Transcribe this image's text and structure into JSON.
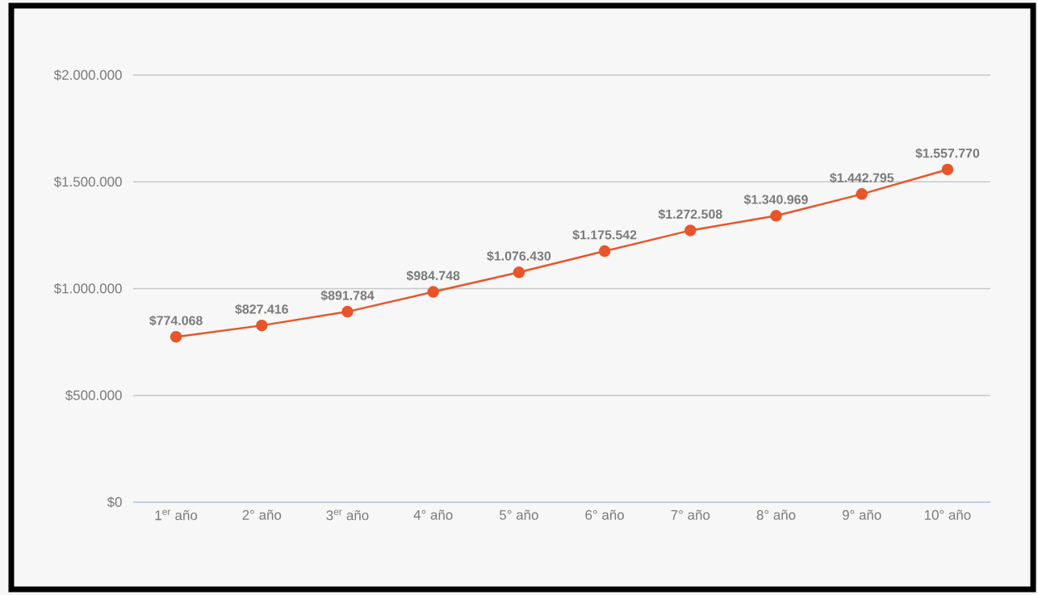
{
  "chart_data": {
    "type": "line",
    "categories": [
      "1$^{er}$ año",
      "2° año",
      "3$^{er}$ año",
      "4° año",
      "5° año",
      "6° año",
      "7° año",
      "8° año",
      "9° año",
      "10° año"
    ],
    "series": [
      {
        "color": "#e8552a",
        "values": [
          774068,
          827416,
          891784,
          984748,
          1076430,
          1175542,
          1272508,
          1340969,
          1442795,
          1557770
        ]
      }
    ],
    "value_labels": [
      "$774.068",
      "$827.416",
      "$891.784",
      "$984.748",
      "$1.076.430",
      "$1.175.542",
      "$1.272.508",
      "$1.340.969",
      "$1.442.795",
      "$1.557.770"
    ],
    "ylim": [
      0,
      2000000
    ],
    "yticks": [
      {
        "value": 0,
        "label": "$0"
      },
      {
        "value": 500000,
        "label": "$500.000"
      },
      {
        "value": 1000000,
        "label": "$1.000.000"
      },
      {
        "value": 1500000,
        "label": "$1.500.000"
      },
      {
        "value": 2000000,
        "label": "$2.000.000"
      }
    ],
    "grid": "y",
    "marker": "circle",
    "line_style": "solid"
  }
}
